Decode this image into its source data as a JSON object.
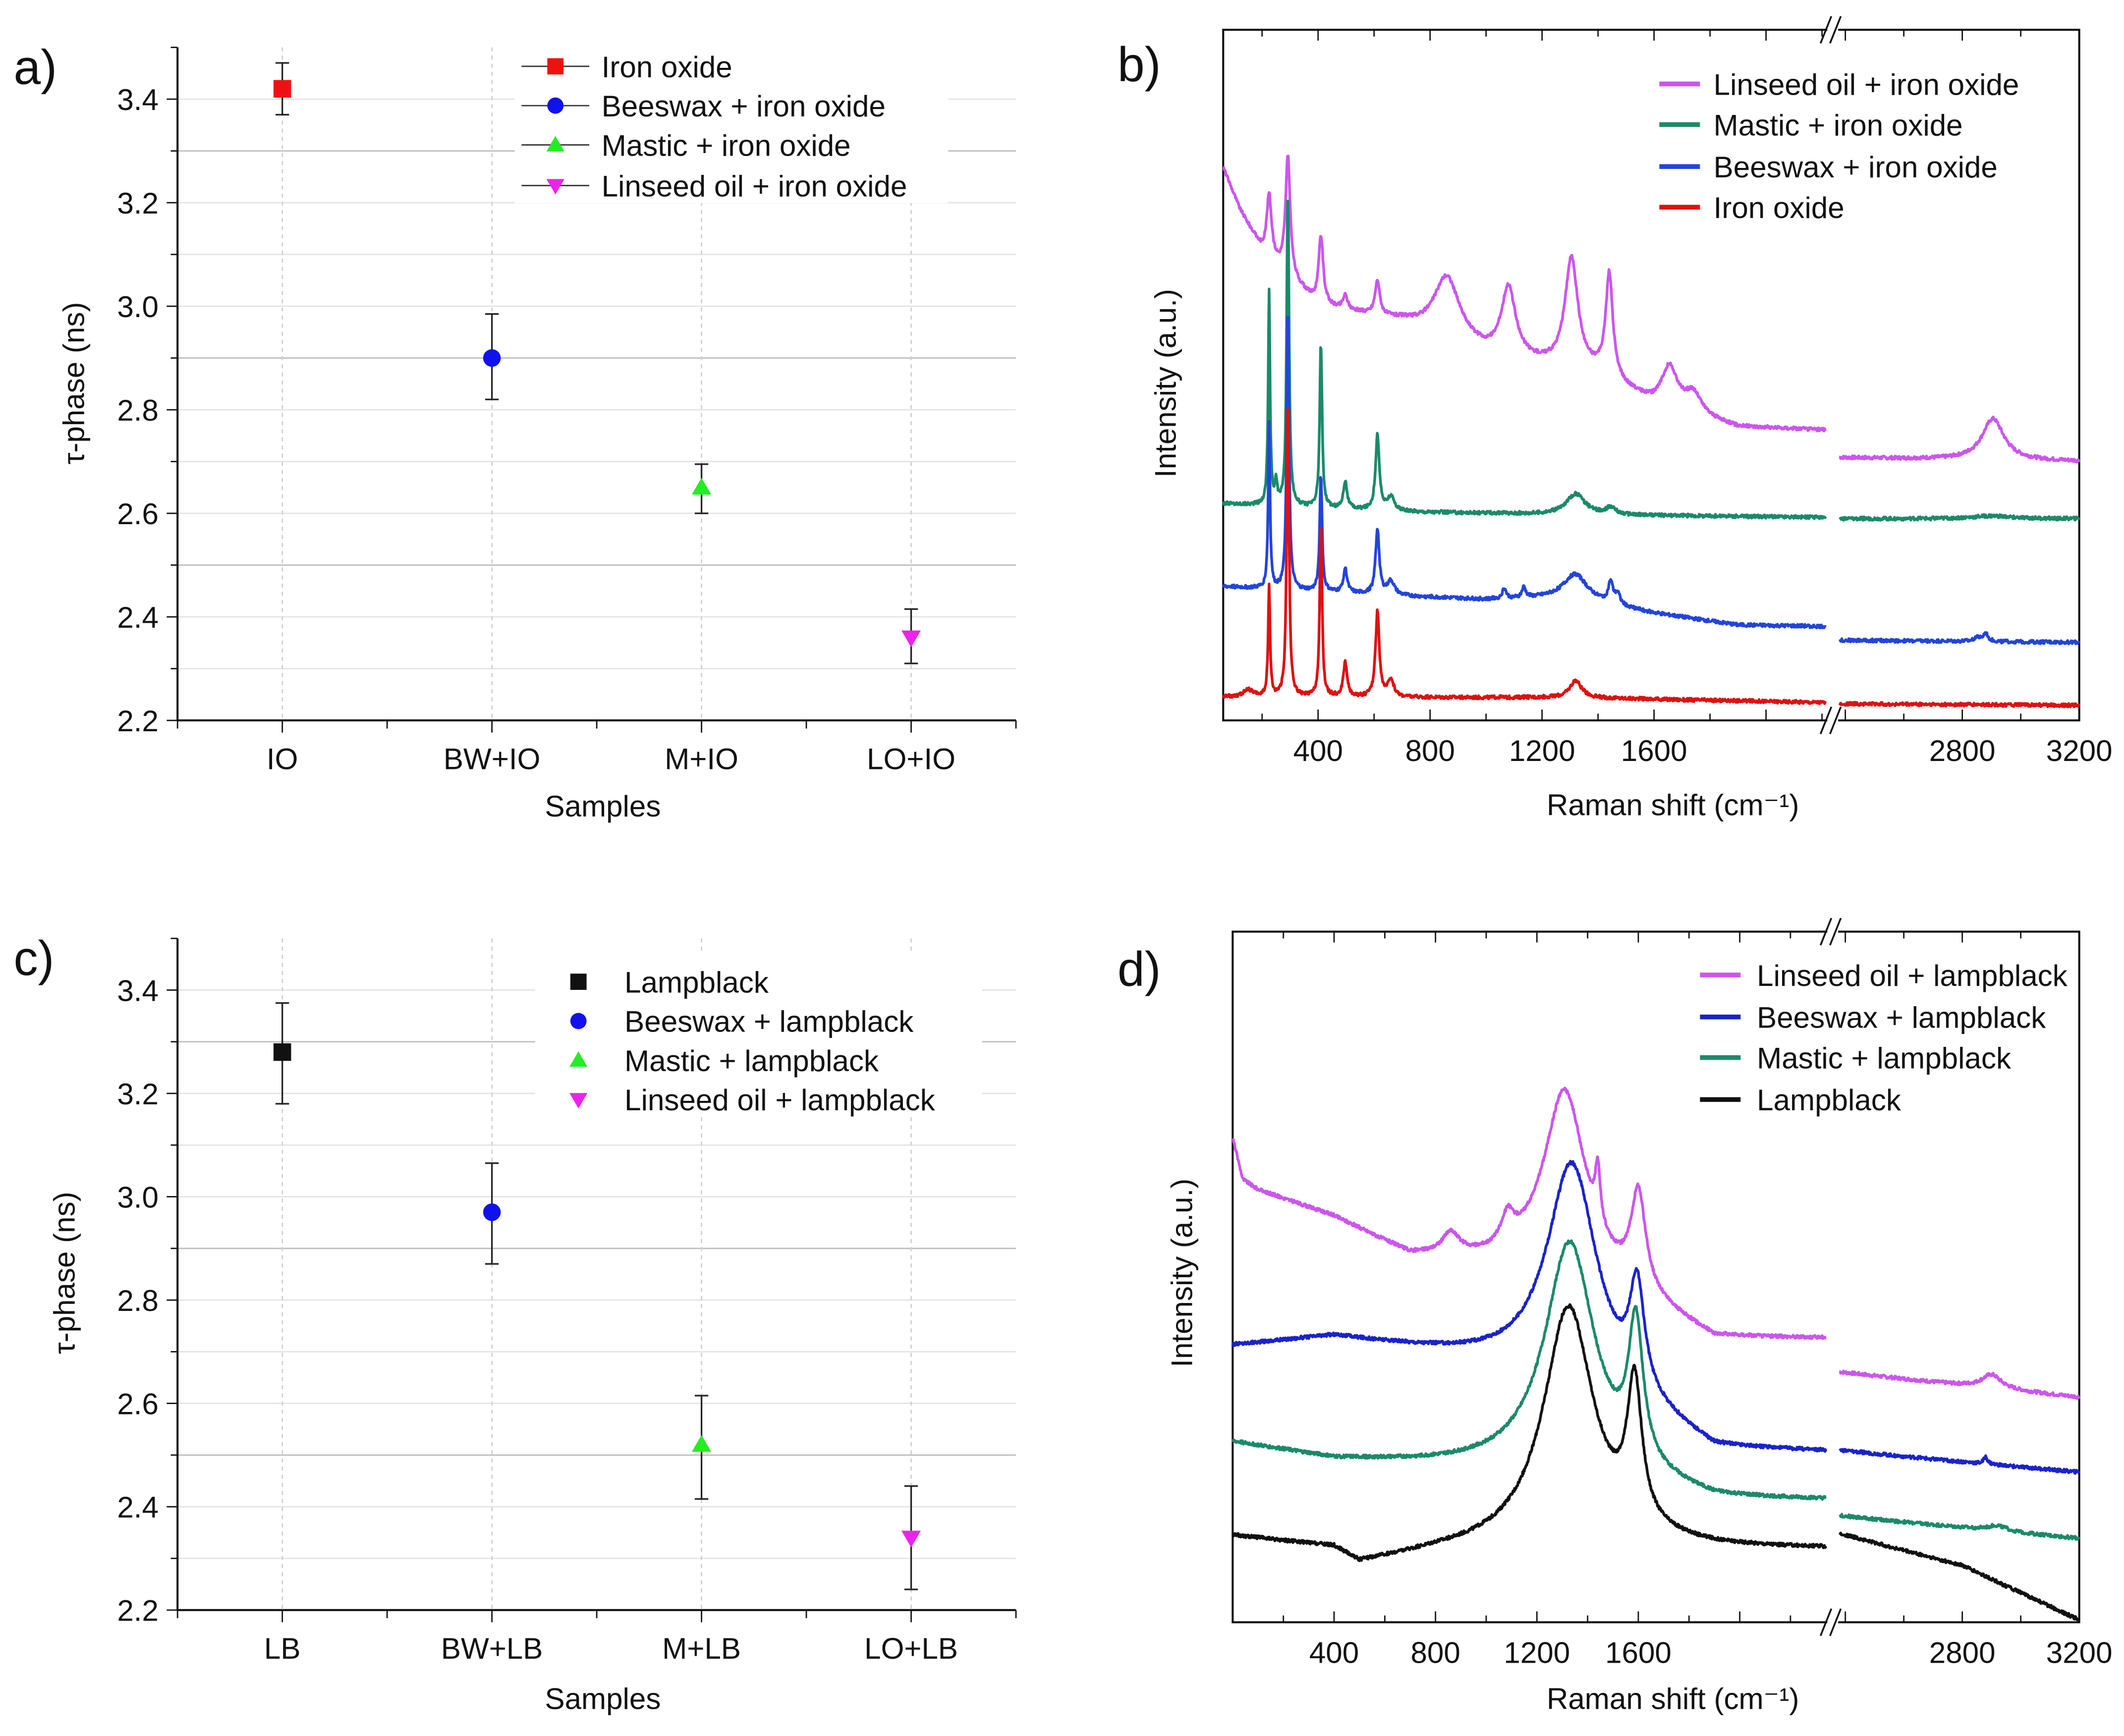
{
  "chart_data": [
    {
      "type": "scatter",
      "panel_label": "a)",
      "xlabel": "Samples",
      "ylabel": "τ-phase (ns)",
      "ylim": [
        2.2,
        3.5
      ],
      "yticks": [
        "2.2",
        "2.4",
        "2.6",
        "2.8",
        "3.0",
        "3.2",
        "3.4"
      ],
      "grid": true,
      "legend_position": "top-right",
      "legend_lines": true,
      "categories": [
        "IO",
        "BW+IO",
        "M+IO",
        "LO+IO"
      ],
      "series": [
        {
          "name": "Iron oxide",
          "category": "IO",
          "value": 3.42,
          "err_low": 3.37,
          "err_high": 3.47,
          "marker": "square",
          "color": "#ee1111"
        },
        {
          "name": "Beeswax + iron oxide",
          "category": "BW+IO",
          "value": 2.9,
          "err_low": 2.82,
          "err_high": 2.985,
          "marker": "circle",
          "color": "#1111ee"
        },
        {
          "name": "Mastic + iron oxide",
          "category": "M+IO",
          "value": 2.65,
          "err_low": 2.6,
          "err_high": 2.695,
          "marker": "triangle-up",
          "color": "#22ee22"
        },
        {
          "name": "Linseed oil + iron oxide",
          "category": "LO+IO",
          "value": 2.36,
          "err_low": 2.31,
          "err_high": 2.415,
          "marker": "triangle-down",
          "color": "#ee22ee"
        }
      ]
    },
    {
      "type": "line",
      "panel_label": "b)",
      "xlabel": "Raman shift (cm⁻¹)",
      "ylabel": "Intensity (a.u.)",
      "x_break": true,
      "xlim_left": [
        61,
        2214
      ],
      "xlim_right": [
        2380,
        3200
      ],
      "xticks": [
        "400",
        "800",
        "1200",
        "1600",
        "2800",
        "3200"
      ],
      "ylim": [
        0,
        100
      ],
      "legend_position": "top-right",
      "series": [
        {
          "name": "Linseed oil + iron oxide",
          "color": "#cc55ee",
          "baseline": [
            [
              61,
              80
            ],
            [
              120,
              74
            ],
            [
              200,
              68
            ],
            [
              400,
              60
            ],
            [
              700,
              57.6
            ],
            [
              1000,
              53
            ],
            [
              1200,
              51.4
            ],
            [
              1400,
              50
            ],
            [
              1600,
              45.5
            ],
            [
              1900,
              42.4
            ],
            [
              2214,
              42
            ],
            [
              2380,
              38
            ],
            [
              3200,
              37.5
            ]
          ],
          "peaks": [
            [
              225,
              9,
              10
            ],
            [
              292,
              17,
              10
            ],
            [
              410,
              10,
              10
            ],
            [
              497,
              2,
              10
            ],
            [
              612,
              5,
              10
            ],
            [
              860,
              9,
              55
            ],
            [
              1080,
              10,
              30
            ],
            [
              1305,
              16,
              28
            ],
            [
              1440,
              15,
              15
            ],
            [
              1655,
              6,
              35
            ],
            [
              1740,
              3,
              35
            ],
            [
              2905,
              6,
              45
            ]
          ]
        },
        {
          "name": "Mastic + iron oxide",
          "color": "#1a8a6a",
          "baseline": [
            [
              61,
              31.4
            ],
            [
              700,
              30.2
            ],
            [
              1300,
              29.8
            ],
            [
              2214,
              29.4
            ],
            [
              2380,
              29.2
            ],
            [
              3200,
              29.2
            ]
          ],
          "peaks": [
            [
              225,
              31,
              4
            ],
            [
              250,
              3,
              5
            ],
            [
              292,
              46,
              5
            ],
            [
              410,
              24,
              5
            ],
            [
              497,
              4,
              8
            ],
            [
              612,
              11,
              8
            ],
            [
              660,
              2,
              15
            ],
            [
              1320,
              3,
              40
            ],
            [
              1445,
              1,
              20
            ],
            [
              2900,
              0.4,
              80
            ]
          ]
        },
        {
          "name": "Beeswax + iron oxide",
          "color": "#2244dd",
          "baseline": [
            [
              61,
              19.4
            ],
            [
              700,
              18
            ],
            [
              1000,
              17.5
            ],
            [
              1300,
              17.8
            ],
            [
              1600,
              15.5
            ],
            [
              1900,
              13.8
            ],
            [
              2214,
              13.6
            ],
            [
              2380,
              11.6
            ],
            [
              3200,
              11.3
            ]
          ],
          "peaks": [
            [
              225,
              24,
              4
            ],
            [
              292,
              41,
              5
            ],
            [
              410,
              17,
              5
            ],
            [
              497,
              3.5,
              8
            ],
            [
              612,
              9.5,
              8
            ],
            [
              660,
              2,
              15
            ],
            [
              1065,
              1.5,
              8
            ],
            [
              1135,
              1.5,
              8
            ],
            [
              1320,
              3.5,
              50
            ],
            [
              1445,
              3,
              10
            ],
            [
              1470,
              1.5,
              10
            ],
            [
              2850,
              0.7,
              10
            ],
            [
              2880,
              1.2,
              10
            ]
          ]
        },
        {
          "name": "Iron oxide",
          "color": "#e01010",
          "baseline": [
            [
              61,
              3.4
            ],
            [
              1300,
              3.3
            ],
            [
              2214,
              2.6
            ],
            [
              2380,
              2.4
            ],
            [
              3200,
              2.2
            ]
          ],
          "peaks": [
            [
              150,
              1,
              20
            ],
            [
              225,
              16,
              4
            ],
            [
              292,
              43,
              5
            ],
            [
              410,
              25,
              5
            ],
            [
              497,
              5,
              8
            ],
            [
              612,
              12.5,
              8
            ],
            [
              660,
              2.5,
              12
            ],
            [
              1320,
              2.5,
              25
            ]
          ]
        }
      ]
    },
    {
      "type": "scatter",
      "panel_label": "c)",
      "xlabel": "Samples",
      "ylabel": "τ-phase (ns)",
      "ylim": [
        2.2,
        3.5
      ],
      "yticks": [
        "2.2",
        "2.4",
        "2.6",
        "2.8",
        "3.0",
        "3.2",
        "3.4"
      ],
      "grid": true,
      "legend_position": "top-right",
      "legend_lines": false,
      "categories": [
        "LB",
        "BW+LB",
        "M+LB",
        "LO+LB"
      ],
      "series": [
        {
          "name": "Lampblack",
          "category": "LB",
          "value": 3.28,
          "err_low": 3.18,
          "err_high": 3.375,
          "marker": "square",
          "color": "#111111"
        },
        {
          "name": "Beeswax + lampblack",
          "category": "BW+LB",
          "value": 2.97,
          "err_low": 2.87,
          "err_high": 3.065,
          "marker": "circle",
          "color": "#1111ee"
        },
        {
          "name": "Mastic + lampblack",
          "category": "M+LB",
          "value": 2.52,
          "err_low": 2.415,
          "err_high": 2.615,
          "marker": "triangle-up",
          "color": "#22ee22"
        },
        {
          "name": "Linseed oil + lampblack",
          "category": "LO+LB",
          "value": 2.34,
          "err_low": 2.24,
          "err_high": 2.44,
          "marker": "triangle-down",
          "color": "#ee22ee"
        }
      ]
    },
    {
      "type": "line",
      "panel_label": "d)",
      "xlabel": "Raman shift (cm⁻¹)",
      "ylabel": "Intensity (a.u.)",
      "x_break": true,
      "xlim_left": [
        0,
        2340
      ],
      "xlim_right": [
        2380,
        3200
      ],
      "xticks": [
        "400",
        "800",
        "1200",
        "1600",
        "2800",
        "3200"
      ],
      "ylim": [
        0,
        100
      ],
      "legend_position": "top-right",
      "series": [
        {
          "name": "Linseed oil + lampblack",
          "color": "#cc55ee",
          "baseline": [
            [
              0,
              70
            ],
            [
              40,
              64
            ],
            [
              100,
              62.5
            ],
            [
              400,
              58.6
            ],
            [
              700,
              53
            ],
            [
              1000,
              52
            ],
            [
              1300,
              52
            ],
            [
              1900,
              41
            ],
            [
              2340,
              41
            ],
            [
              2380,
              36
            ],
            [
              3200,
              32.5
            ]
          ],
          "peaks": [
            [
              860,
              3,
              40
            ],
            [
              1085,
              4,
              30
            ],
            [
              1310,
              25,
              100
            ],
            [
              1440,
              8,
              12
            ],
            [
              1600,
              14,
              35
            ],
            [
              2900,
              2,
              40
            ]
          ]
        },
        {
          "name": "Beeswax + lampblack",
          "color": "#1a22cc",
          "baseline": [
            [
              0,
              40
            ],
            [
              400,
              41.2
            ],
            [
              800,
              39
            ],
            [
              1300,
              36
            ],
            [
              1900,
              24.7
            ],
            [
              2340,
              24.5
            ],
            [
              2380,
              24.5
            ],
            [
              3200,
              21.6
            ]
          ],
          "peaks": [
            [
              1340,
              31,
              120
            ],
            [
              1595,
              15,
              35
            ],
            [
              2880,
              1,
              8
            ]
          ]
        },
        {
          "name": "Mastic + lampblack",
          "color": "#1a8a6a",
          "baseline": [
            [
              0,
              26
            ],
            [
              400,
              23.5
            ],
            [
              800,
              22.7
            ],
            [
              1300,
              22
            ],
            [
              1900,
              17.5
            ],
            [
              2340,
              17.5
            ],
            [
              2380,
              15
            ],
            [
              3200,
              12
            ]
          ],
          "peaks": [
            [
              1330,
              33,
              120
            ],
            [
              1590,
              20,
              35
            ],
            [
              2920,
              0.8,
              40
            ]
          ]
        },
        {
          "name": "Lampblack",
          "color": "#111111",
          "baseline": [
            [
              0,
              12.4
            ],
            [
              400,
              10.6
            ],
            [
              500,
              8.4
            ],
            [
              800,
              10
            ],
            [
              1300,
              11.5
            ],
            [
              1900,
              10.5
            ],
            [
              2340,
              10.5
            ],
            [
              2380,
              12.4
            ],
            [
              2800,
              8
            ],
            [
              3200,
              0.2
            ]
          ],
          "peaks": [
            [
              1325,
              34,
              120
            ],
            [
              1585,
              20,
              35
            ]
          ]
        }
      ]
    }
  ]
}
